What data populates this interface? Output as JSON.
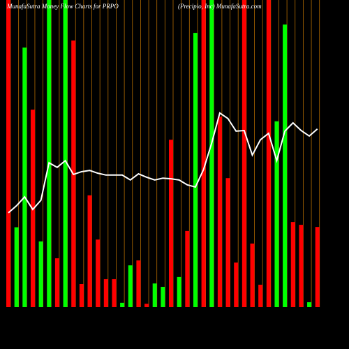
{
  "chart_data": {
    "type": "bar-line",
    "title": "MunafaSutra Money Flow Charts for PRPO",
    "subtitle": "(Precipio, Inc) MunafaSutra.com",
    "categories": [
      null,
      null,
      null,
      null,
      null,
      null,
      null,
      null,
      null,
      null,
      null,
      null,
      null,
      null,
      null,
      null,
      null,
      null,
      null,
      null,
      null,
      null,
      null,
      null,
      null,
      null,
      null,
      null,
      null,
      null,
      null,
      null,
      null,
      null,
      null,
      null,
      null,
      null,
      null
    ],
    "values": [
      100,
      26,
      84.5,
      64.3,
      21.4,
      100,
      15.9,
      100,
      86.8,
      7.5,
      36.4,
      22,
      9.1,
      9.1,
      1.4,
      13.6,
      15.2,
      1.1,
      7.7,
      6.6,
      54.5,
      9.8,
      24.8,
      89.3,
      100,
      100,
      62,
      42,
      14.5,
      100,
      20.7,
      7.3,
      100,
      60.5,
      92,
      27.7,
      26.8,
      1.6,
      26.1
    ],
    "bar_colors": [
      "#ff0000",
      "#00ff00",
      "#00ff00",
      "#ff0000",
      "#00ff00",
      "#00ff00",
      "#ff0000",
      "#00ff00",
      "#ff0000",
      "#ff0000",
      "#ff0000",
      "#ff0000",
      "#ff0000",
      "#ff0000",
      "#00ff00",
      "#00ff00",
      "#ff0000",
      "#ff0000",
      "#00ff00",
      "#00ff00",
      "#ff0000",
      "#00ff00",
      "#ff0000",
      "#00ff00",
      "#ff0000",
      "#00ff00",
      "#ff0000",
      "#ff0000",
      "#ff0000",
      "#ff0000",
      "#ff0000",
      "#ff0000",
      "#ff0000",
      "#00ff00",
      "#00ff00",
      "#ff0000",
      "#ff0000",
      "#00ff00",
      "#ff0000"
    ],
    "line_values": [
      30.7,
      33,
      35.9,
      31.8,
      34.8,
      47,
      45.5,
      47.7,
      43.2,
      44.1,
      44.5,
      43.6,
      43,
      43,
      43,
      41.4,
      43.4,
      42.3,
      41.4,
      42,
      41.8,
      41.4,
      39.8,
      39.1,
      44.8,
      53.4,
      63.2,
      61.4,
      57.3,
      57.5,
      49.5,
      54.5,
      56.6,
      47.7,
      57.3,
      60,
      57.5,
      55.7,
      58
    ],
    "line_color": "#ffffff",
    "grid_color": "#b36b00",
    "ylim": [
      0,
      100
    ],
    "grid": true
  }
}
